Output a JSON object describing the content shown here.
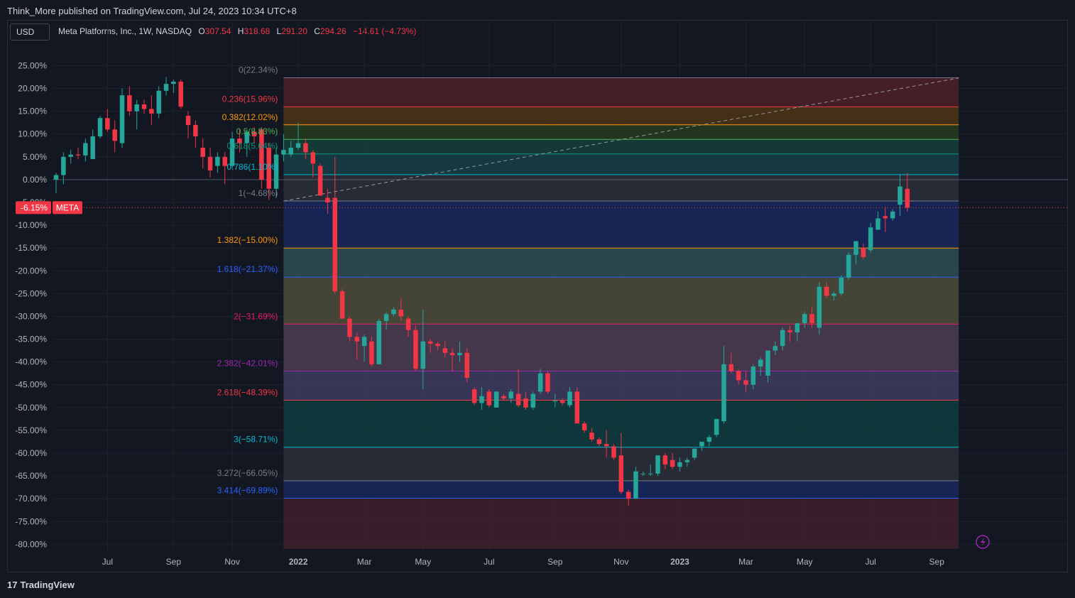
{
  "header": {
    "publish_text": "Think_More published on TradingView.com, Jul 24, 2023 10:34 UTC+8",
    "currency": "USD",
    "symbol_line": "Meta Platforms, Inc., 1W, NASDAQ",
    "o_label": "O",
    "o_value": "307.54",
    "h_label": "H",
    "h_value": "318.68",
    "l_label": "L",
    "l_value": "291.20",
    "c_label": "C",
    "c_value": "294.26",
    "change": "−14.61 (−4.73%)"
  },
  "brand": {
    "logo": "17",
    "text": "TradingView"
  },
  "colors": {
    "up": "#26a69a",
    "down": "#f23645",
    "background": "#131722",
    "grid": "#1e222d",
    "axis_text": "#b2b5be"
  },
  "chart_data": {
    "type": "candlestick",
    "title": "Meta Platforms, Inc., 1W, NASDAQ",
    "y_unit": "percent",
    "ylim": [
      -81.5,
      28.5
    ],
    "y_ticks": [
      "25.00%",
      "20.00%",
      "15.00%",
      "10.00%",
      "5.00%",
      "0.00%",
      "-5.00%",
      "-10.00%",
      "-15.00%",
      "-20.00%",
      "-25.00%",
      "-30.00%",
      "-35.00%",
      "-40.00%",
      "-45.00%",
      "-50.00%",
      "-55.00%",
      "-60.00%",
      "-65.00%",
      "-70.00%",
      "-75.00%",
      "-80.00%"
    ],
    "x_ticks": [
      {
        "label": "Jul",
        "week": 7
      },
      {
        "label": "Sep",
        "week": 16
      },
      {
        "label": "Nov",
        "week": 24
      },
      {
        "label": "2022",
        "week": 33
      },
      {
        "label": "Mar",
        "week": 42
      },
      {
        "label": "May",
        "week": 50
      },
      {
        "label": "Jul",
        "week": 59
      },
      {
        "label": "Sep",
        "week": 68
      },
      {
        "label": "Nov",
        "week": 77
      },
      {
        "label": "2023",
        "week": 85
      },
      {
        "label": "Mar",
        "week": 94
      },
      {
        "label": "May",
        "week": 102
      },
      {
        "label": "Jul",
        "week": 111
      },
      {
        "label": "Sep",
        "week": 120
      }
    ],
    "x_range": [
      0,
      124
    ],
    "zero_line": 0,
    "last_price_label": "-6.15%",
    "last_price_symbol": "META",
    "last_price_value": -6.15,
    "fib_levels": [
      {
        "label": "0(22.34%)",
        "value": 22.34,
        "color": "#787b86",
        "fill": "#4a2028"
      },
      {
        "label": "0.236(15.96%)",
        "value": 15.96,
        "color": "#f23645",
        "fill": "#4a3316"
      },
      {
        "label": "0.382(12.02%)",
        "value": 12.02,
        "color": "#ff9800",
        "fill": "#24381f"
      },
      {
        "label": "0.5(8.83%)",
        "value": 8.83,
        "color": "#4caf50",
        "fill": "#163d36"
      },
      {
        "label": "0.618(5.64%)",
        "value": 5.64,
        "color": "#089981",
        "fill": "#173c44"
      },
      {
        "label": "0.786(1.10%)",
        "value": 1.1,
        "color": "#00bcd4",
        "fill": "#2a2e39"
      },
      {
        "label": "1(−4.68%)",
        "value": -4.68,
        "color": "#787b86",
        "fill": "#18275a"
      },
      {
        "label": "1.382(−15.00%)",
        "value": -15.0,
        "color": "#ff9800",
        "fill": "#2f4a52"
      },
      {
        "label": "1.618(−21.37%)",
        "value": -21.37,
        "color": "#2962ff",
        "fill": "#4a4a38"
      },
      {
        "label": "2(−31.69%)",
        "value": -31.69,
        "color": "#e91e63",
        "fill": "#4a3b50"
      },
      {
        "label": "2.382(−42.01%)",
        "value": -42.01,
        "color": "#9c27b0",
        "fill": "#3d3a5c"
      },
      {
        "label": "2.618(−48.39%)",
        "value": -48.39,
        "color": "#f23645",
        "fill": "#0f3a3d"
      },
      {
        "label": "3(−58.71%)",
        "value": -58.71,
        "color": "#00bcd4",
        "fill": "#2a2e39"
      },
      {
        "label": "3.272(−66.05%)",
        "value": -66.05,
        "color": "#787b86",
        "fill": "#18275a"
      },
      {
        "label": "3.414(−69.89%)",
        "value": -69.89,
        "color": "#2962ff",
        "fill": "#3d1f2b"
      }
    ],
    "fib_range_weeks": [
      31,
      123
    ],
    "fib_bottom_value": -81.0,
    "trend_line": {
      "from": {
        "week": 31,
        "value": -4.7
      },
      "to": {
        "week": 123,
        "value": 22.3
      }
    },
    "candles": [
      {
        "o": 0.0,
        "h": 1.5,
        "l": -3.0,
        "c": 1.0
      },
      {
        "o": 1.0,
        "h": 6.0,
        "l": -1.0,
        "c": 5.0
      },
      {
        "o": 5.0,
        "h": 6.5,
        "l": 3.5,
        "c": 5.5
      },
      {
        "o": 5.5,
        "h": 7.0,
        "l": 4.5,
        "c": 5.3
      },
      {
        "o": 5.3,
        "h": 9.0,
        "l": 4.0,
        "c": 8.0
      },
      {
        "o": 4.5,
        "h": 11.0,
        "l": 4.5,
        "c": 9.5
      },
      {
        "o": 9.5,
        "h": 14.0,
        "l": 9.0,
        "c": 13.5
      },
      {
        "o": 13.5,
        "h": 15.5,
        "l": 10.5,
        "c": 11.0
      },
      {
        "o": 11.0,
        "h": 13.0,
        "l": 6.0,
        "c": 8.5
      },
      {
        "o": 8.0,
        "h": 20.0,
        "l": 7.0,
        "c": 18.5
      },
      {
        "o": 18.5,
        "h": 20.5,
        "l": 14.0,
        "c": 15.0
      },
      {
        "o": 15.0,
        "h": 17.5,
        "l": 11.0,
        "c": 16.5
      },
      {
        "o": 16.5,
        "h": 17.5,
        "l": 14.5,
        "c": 15.5
      },
      {
        "o": 15.5,
        "h": 18.5,
        "l": 12.0,
        "c": 14.5
      },
      {
        "o": 14.5,
        "h": 20.5,
        "l": 13.5,
        "c": 19.5
      },
      {
        "o": 19.5,
        "h": 22.5,
        "l": 18.5,
        "c": 21.0
      },
      {
        "o": 21.0,
        "h": 22.0,
        "l": 19.0,
        "c": 21.5
      },
      {
        "o": 21.5,
        "h": 22.0,
        "l": 15.5,
        "c": 16.0
      },
      {
        "o": 14.0,
        "h": 15.0,
        "l": 9.0,
        "c": 12.0
      },
      {
        "o": 12.0,
        "h": 13.0,
        "l": 7.0,
        "c": 9.5
      },
      {
        "o": 7.0,
        "h": 9.0,
        "l": 2.5,
        "c": 5.0
      },
      {
        "o": 5.0,
        "h": 7.0,
        "l": 0.5,
        "c": 2.0
      },
      {
        "o": 3.0,
        "h": 6.0,
        "l": 1.5,
        "c": 5.0
      },
      {
        "o": 5.0,
        "h": 6.0,
        "l": -1.0,
        "c": 3.0
      },
      {
        "o": 3.0,
        "h": 10.5,
        "l": 2.5,
        "c": 9.0
      },
      {
        "o": 9.0,
        "h": 11.0,
        "l": 6.0,
        "c": 8.0
      },
      {
        "o": 8.0,
        "h": 11.0,
        "l": 5.0,
        "c": 10.5
      },
      {
        "o": 10.5,
        "h": 11.5,
        "l": 8.0,
        "c": 9.5
      },
      {
        "o": 11.0,
        "h": 11.5,
        "l": -2.0,
        "c": 0.0
      },
      {
        "o": 7.0,
        "h": 8.0,
        "l": -4.5,
        "c": -2.0
      },
      {
        "o": -2.0,
        "h": 7.0,
        "l": -4.0,
        "c": 5.5
      },
      {
        "o": 5.5,
        "h": 10.0,
        "l": 4.0,
        "c": 6.5
      },
      {
        "o": 5.5,
        "h": 8.5,
        "l": 5.0,
        "c": 7.0
      },
      {
        "o": 7.0,
        "h": 12.5,
        "l": 6.5,
        "c": 8.0
      },
      {
        "o": 8.0,
        "h": 9.0,
        "l": 4.5,
        "c": 6.0
      },
      {
        "o": 6.0,
        "h": 6.5,
        "l": 0.5,
        "c": 3.5
      },
      {
        "o": 3.0,
        "h": 3.5,
        "l": -3.5,
        "c": -3.5
      },
      {
        "o": -4.0,
        "h": -2.0,
        "l": -7.5,
        "c": -5.0
      },
      {
        "o": -4.0,
        "h": 5.0,
        "l": -25.0,
        "c": -24.5
      },
      {
        "o": -24.5,
        "h": -24.0,
        "l": -30.5,
        "c": -30.5
      },
      {
        "o": -30.5,
        "h": -30.0,
        "l": -35.5,
        "c": -34.5
      },
      {
        "o": -34.5,
        "h": -33.5,
        "l": -39.5,
        "c": -35.5
      },
      {
        "o": -36.5,
        "h": -34.0,
        "l": -40.0,
        "c": -34.5
      },
      {
        "o": -35.5,
        "h": -34.5,
        "l": -41.0,
        "c": -40.5
      },
      {
        "o": -40.5,
        "h": -30.5,
        "l": -40.5,
        "c": -31.0
      },
      {
        "o": -31.0,
        "h": -29.0,
        "l": -33.0,
        "c": -29.5
      },
      {
        "o": -29.5,
        "h": -28.0,
        "l": -30.0,
        "c": -28.5
      },
      {
        "o": -28.5,
        "h": -26.0,
        "l": -31.0,
        "c": -30.0
      },
      {
        "o": -30.5,
        "h": -30.0,
        "l": -34.5,
        "c": -33.0
      },
      {
        "o": -33.0,
        "h": -32.0,
        "l": -42.0,
        "c": -41.5
      },
      {
        "o": -41.5,
        "h": -28.5,
        "l": -46.0,
        "c": -35.5
      },
      {
        "o": -35.5,
        "h": -35.0,
        "l": -38.0,
        "c": -36.0
      },
      {
        "o": -36.0,
        "h": -35.5,
        "l": -37.5,
        "c": -36.5
      },
      {
        "o": -37.0,
        "h": -35.5,
        "l": -39.0,
        "c": -38.0
      },
      {
        "o": -38.0,
        "h": -37.0,
        "l": -42.0,
        "c": -38.5
      },
      {
        "o": -38.5,
        "h": -35.5,
        "l": -40.0,
        "c": -38.0
      },
      {
        "o": -38.0,
        "h": -37.0,
        "l": -44.5,
        "c": -43.5
      },
      {
        "o": -46.0,
        "h": -45.5,
        "l": -49.5,
        "c": -49.0
      },
      {
        "o": -49.0,
        "h": -45.5,
        "l": -50.5,
        "c": -47.5
      },
      {
        "o": -46.5,
        "h": -46.0,
        "l": -50.0,
        "c": -49.5
      },
      {
        "o": -50.0,
        "h": -46.5,
        "l": -50.0,
        "c": -46.5
      },
      {
        "o": -47.5,
        "h": -47.0,
        "l": -48.5,
        "c": -48.0
      },
      {
        "o": -48.0,
        "h": -46.0,
        "l": -49.0,
        "c": -46.5
      },
      {
        "o": -47.0,
        "h": -41.5,
        "l": -50.0,
        "c": -49.5
      },
      {
        "o": -48.0,
        "h": -46.5,
        "l": -50.5,
        "c": -50.0
      },
      {
        "o": -50.0,
        "h": -46.5,
        "l": -50.5,
        "c": -47.0
      },
      {
        "o": -46.5,
        "h": -41.5,
        "l": -47.0,
        "c": -42.5
      },
      {
        "o": -42.5,
        "h": -42.0,
        "l": -47.0,
        "c": -46.5
      },
      {
        "o": -48.5,
        "h": -47.0,
        "l": -50.0,
        "c": -48.5
      },
      {
        "o": -48.5,
        "h": -48.0,
        "l": -49.5,
        "c": -49.0
      },
      {
        "o": -49.5,
        "h": -45.5,
        "l": -50.0,
        "c": -46.5
      },
      {
        "o": -46.5,
        "h": -45.5,
        "l": -53.5,
        "c": -53.5
      },
      {
        "o": -53.5,
        "h": -53.0,
        "l": -55.5,
        "c": -55.0
      },
      {
        "o": -55.5,
        "h": -54.5,
        "l": -57.5,
        "c": -57.0
      },
      {
        "o": -57.0,
        "h": -56.5,
        "l": -58.5,
        "c": -58.0
      },
      {
        "o": -58.0,
        "h": -55.0,
        "l": -61.0,
        "c": -58.5
      },
      {
        "o": -58.5,
        "h": -58.0,
        "l": -61.5,
        "c": -61.0
      },
      {
        "o": -60.5,
        "h": -55.5,
        "l": -69.0,
        "c": -68.5
      },
      {
        "o": -68.5,
        "h": -68.0,
        "l": -71.5,
        "c": -70.0
      },
      {
        "o": -70.0,
        "h": -63.0,
        "l": -70.0,
        "c": -64.0
      },
      {
        "o": -64.5,
        "h": -64.0,
        "l": -65.0,
        "c": -64.5
      },
      {
        "o": -64.5,
        "h": -62.5,
        "l": -65.0,
        "c": -64.5
      },
      {
        "o": -64.5,
        "h": -60.5,
        "l": -65.0,
        "c": -60.5
      },
      {
        "o": -60.5,
        "h": -60.0,
        "l": -63.5,
        "c": -62.5
      },
      {
        "o": -61.5,
        "h": -60.0,
        "l": -63.5,
        "c": -63.0
      },
      {
        "o": -63.0,
        "h": -61.0,
        "l": -64.0,
        "c": -62.0
      },
      {
        "o": -62.0,
        "h": -61.0,
        "l": -63.0,
        "c": -61.5
      },
      {
        "o": -61.0,
        "h": -59.0,
        "l": -61.5,
        "c": -59.0
      },
      {
        "o": -58.5,
        "h": -57.5,
        "l": -59.5,
        "c": -57.5
      },
      {
        "o": -57.5,
        "h": -56.0,
        "l": -58.5,
        "c": -56.5
      },
      {
        "o": -56.0,
        "h": -52.5,
        "l": -56.5,
        "c": -52.5
      },
      {
        "o": -53.0,
        "h": -36.5,
        "l": -53.5,
        "c": -40.5
      },
      {
        "o": -40.5,
        "h": -38.0,
        "l": -42.5,
        "c": -42.0
      },
      {
        "o": -42.0,
        "h": -41.5,
        "l": -45.0,
        "c": -44.0
      },
      {
        "o": -44.0,
        "h": -42.0,
        "l": -46.5,
        "c": -45.0
      },
      {
        "o": -45.0,
        "h": -40.5,
        "l": -46.0,
        "c": -41.0
      },
      {
        "o": -41.0,
        "h": -39.0,
        "l": -43.0,
        "c": -39.5
      },
      {
        "o": -43.0,
        "h": -38.0,
        "l": -44.5,
        "c": -37.5
      },
      {
        "o": -37.5,
        "h": -35.5,
        "l": -38.5,
        "c": -36.5
      },
      {
        "o": -36.5,
        "h": -32.5,
        "l": -37.5,
        "c": -33.0
      },
      {
        "o": -33.0,
        "h": -32.0,
        "l": -35.5,
        "c": -33.5
      },
      {
        "o": -33.5,
        "h": -31.5,
        "l": -35.5,
        "c": -31.5
      },
      {
        "o": -31.5,
        "h": -29.0,
        "l": -32.5,
        "c": -29.5
      },
      {
        "o": -29.5,
        "h": -28.0,
        "l": -32.5,
        "c": -31.5
      },
      {
        "o": -32.5,
        "h": -22.5,
        "l": -34.0,
        "c": -23.5
      },
      {
        "o": -23.5,
        "h": -22.5,
        "l": -26.0,
        "c": -25.5
      },
      {
        "o": -25.5,
        "h": -24.5,
        "l": -26.5,
        "c": -25.0
      },
      {
        "o": -25.0,
        "h": -21.0,
        "l": -25.5,
        "c": -21.5
      },
      {
        "o": -21.5,
        "h": -16.0,
        "l": -22.0,
        "c": -16.5
      },
      {
        "o": -16.5,
        "h": -14.0,
        "l": -18.5,
        "c": -13.5
      },
      {
        "o": -15.0,
        "h": -14.0,
        "l": -17.5,
        "c": -17.0
      },
      {
        "o": -15.5,
        "h": -9.5,
        "l": -16.0,
        "c": -10.5
      },
      {
        "o": -11.0,
        "h": -7.0,
        "l": -11.0,
        "c": -8.5
      },
      {
        "o": -8.0,
        "h": -6.0,
        "l": -11.5,
        "c": -8.5
      },
      {
        "o": -8.5,
        "h": -6.5,
        "l": -9.0,
        "c": -7.0
      },
      {
        "o": -5.5,
        "h": 1.0,
        "l": -8.0,
        "c": -1.5
      },
      {
        "o": -2.0,
        "h": 1.5,
        "l": -7.0,
        "c": -6.15
      }
    ]
  }
}
